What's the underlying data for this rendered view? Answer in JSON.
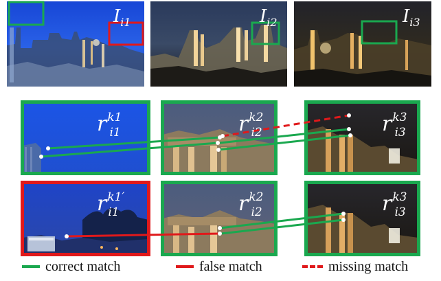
{
  "colors": {
    "correct": "#1aa84f",
    "false": "#e0191b",
    "missing": "#e0191b",
    "night_sky_1": "#1e4fd8",
    "night_sky_2": "#1a2238",
    "night_sky_3": "#1b1a14"
  },
  "top_images": [
    {
      "label_base": "I",
      "label_sub": "i1"
    },
    {
      "label_base": "I",
      "label_sub": "i2"
    },
    {
      "label_base": "I",
      "label_sub": "i3"
    }
  ],
  "rows": [
    {
      "patches": [
        {
          "base": "r",
          "sub": "i1",
          "sup": "k1"
        },
        {
          "base": "r",
          "sub": "i2",
          "sup": "k2"
        },
        {
          "base": "r",
          "sub": "i3",
          "sup": "k3"
        }
      ]
    },
    {
      "patches": [
        {
          "base": "r",
          "sub": "i1",
          "sup": "k1′"
        },
        {
          "base": "r",
          "sub": "i2",
          "sup": "k2"
        },
        {
          "base": "r",
          "sub": "i3",
          "sup": "k3"
        }
      ]
    }
  ],
  "legend": {
    "correct": "correct match",
    "false": "false match",
    "missing": "missing match"
  }
}
